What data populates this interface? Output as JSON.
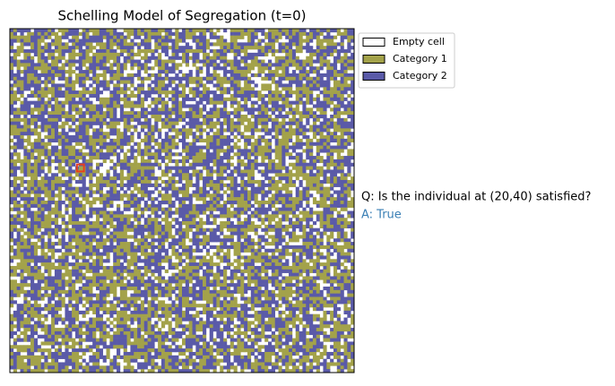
{
  "chart_data": {
    "type": "grid",
    "title": "Schelling Model of Segregation (t=0)",
    "grid_size": 100,
    "highlight": {
      "x": 20,
      "y": 40,
      "color": "#e8401c"
    },
    "series": [
      {
        "name": "Empty cell",
        "color": "#ffffff"
      },
      {
        "name": "Category 1",
        "color": "#a3a24a"
      },
      {
        "name": "Category 2",
        "color": "#5a5aa8"
      }
    ],
    "question": "Q: Is the individual at (20,40) satisfied?",
    "answer": "A: True",
    "answer_color": "#3a7fb5"
  }
}
